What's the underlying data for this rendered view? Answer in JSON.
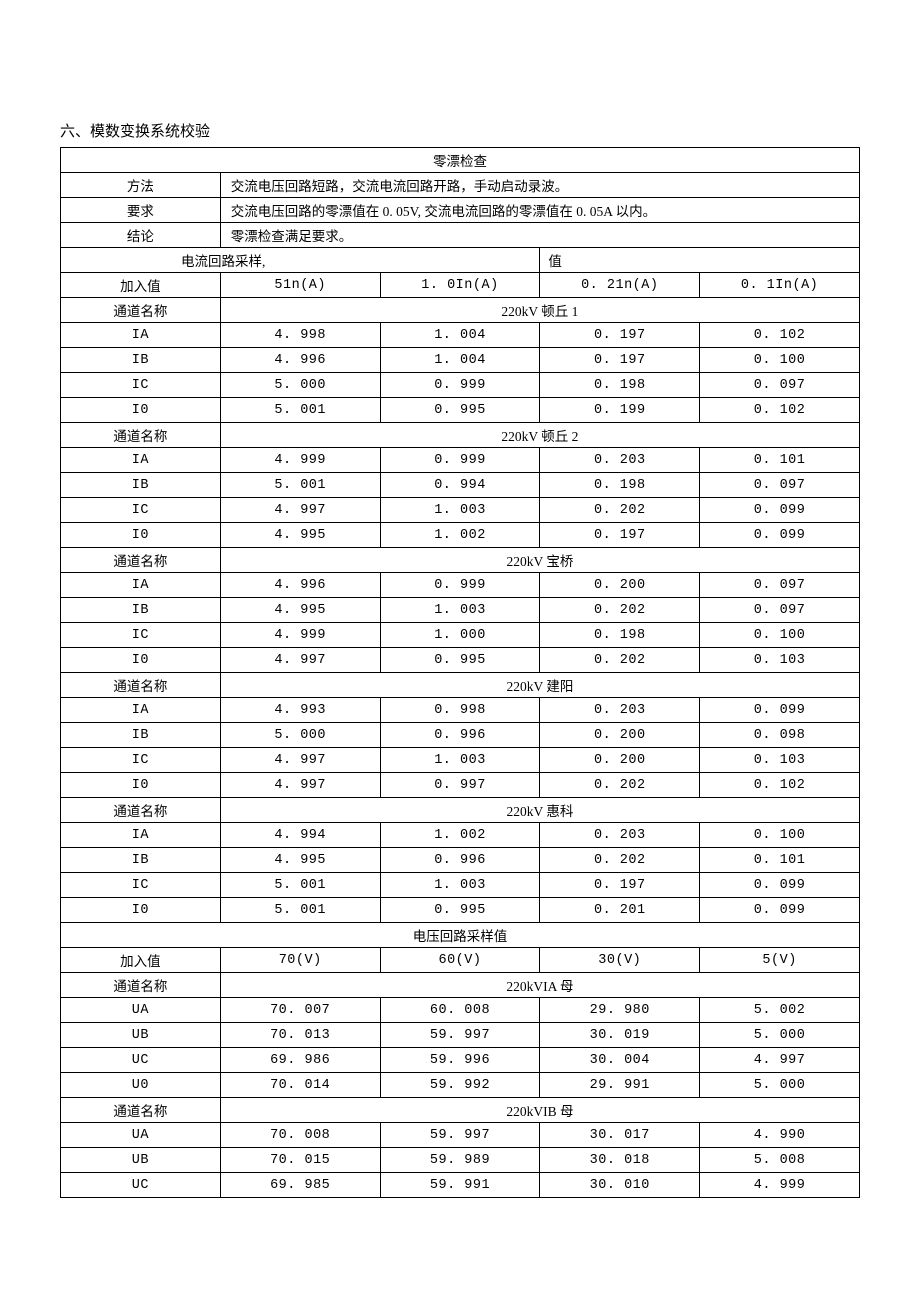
{
  "section_title": "六、模数变换系统校验",
  "zero_drift": {
    "title": "零漂检查",
    "method_label": "方法",
    "method_value": "交流电压回路短路，交流电流回路开路，手动启动录波。",
    "req_label": "要求",
    "req_value": "交流电压回路的零漂值在 0. 05V, 交流电流回路的零漂值在 0. 05A 以内。",
    "conc_label": "结论",
    "conc_value": "零漂检查满足要求。"
  },
  "current_section": {
    "header_left": "电流回路采样,",
    "header_right": "值",
    "input_label": "加入值",
    "cols": [
      "51n(A)",
      "1. 0In(A)",
      "0. 21n(A)",
      "0. 1In(A)"
    ],
    "channel_label": "通道名称",
    "groups": [
      {
        "name": "220kV 顿丘 1",
        "rows": [
          {
            "ch": "IA",
            "v": [
              "4. 998",
              "1. 004",
              "0. 197",
              "0. 102"
            ]
          },
          {
            "ch": "IB",
            "v": [
              "4. 996",
              "1. 004",
              "0. 197",
              "0. 100"
            ]
          },
          {
            "ch": "IC",
            "v": [
              "5. 000",
              "0. 999",
              "0. 198",
              "0. 097"
            ]
          },
          {
            "ch": "I0",
            "v": [
              "5. 001",
              "0. 995",
              "0. 199",
              "0. 102"
            ]
          }
        ]
      },
      {
        "name": "220kV 顿丘 2",
        "rows": [
          {
            "ch": "IA",
            "v": [
              "4. 999",
              "0. 999",
              "0. 203",
              "0. 101"
            ]
          },
          {
            "ch": "IB",
            "v": [
              "5. 001",
              "0. 994",
              "0. 198",
              "0. 097"
            ]
          },
          {
            "ch": "IC",
            "v": [
              "4. 997",
              "1. 003",
              "0. 202",
              "0. 099"
            ]
          },
          {
            "ch": "I0",
            "v": [
              "4. 995",
              "1. 002",
              "0. 197",
              "0. 099"
            ]
          }
        ]
      },
      {
        "name": "220kV 宝桥",
        "rows": [
          {
            "ch": "IA",
            "v": [
              "4. 996",
              "0. 999",
              "0. 200",
              "0. 097"
            ]
          },
          {
            "ch": "IB",
            "v": [
              "4. 995",
              "1. 003",
              "0. 202",
              "0. 097"
            ]
          },
          {
            "ch": "IC",
            "v": [
              "4. 999",
              "1. 000",
              "0. 198",
              "0. 100"
            ]
          },
          {
            "ch": "I0",
            "v": [
              "4. 997",
              "0. 995",
              "0. 202",
              "0. 103"
            ]
          }
        ]
      },
      {
        "name": "220kV 建阳",
        "rows": [
          {
            "ch": "IA",
            "v": [
              "4. 993",
              "0. 998",
              "0. 203",
              "0. 099"
            ]
          },
          {
            "ch": "IB",
            "v": [
              "5. 000",
              "0. 996",
              "0. 200",
              "0. 098"
            ]
          },
          {
            "ch": "IC",
            "v": [
              "4. 997",
              "1. 003",
              "0. 200",
              "0. 103"
            ]
          },
          {
            "ch": "I0",
            "v": [
              "4. 997",
              "0. 997",
              "0. 202",
              "0. 102"
            ]
          }
        ]
      },
      {
        "name": "220kV 惠科",
        "rows": [
          {
            "ch": "IA",
            "v": [
              "4. 994",
              "1. 002",
              "0. 203",
              "0. 100"
            ]
          },
          {
            "ch": "IB",
            "v": [
              "4. 995",
              "0. 996",
              "0. 202",
              "0. 101"
            ]
          },
          {
            "ch": "IC",
            "v": [
              "5. 001",
              "1. 003",
              "0. 197",
              "0. 099"
            ]
          },
          {
            "ch": "I0",
            "v": [
              "5. 001",
              "0. 995",
              "0. 201",
              "0. 099"
            ]
          }
        ]
      }
    ]
  },
  "voltage_section": {
    "title": "电压回路采样值",
    "input_label": "加入值",
    "cols": [
      "70(V)",
      "60(V)",
      "30(V)",
      "5(V)"
    ],
    "channel_label": "通道名称",
    "groups": [
      {
        "name": "220kVIA 母",
        "rows": [
          {
            "ch": "UA",
            "v": [
              "70. 007",
              "60. 008",
              "29. 980",
              "5. 002"
            ]
          },
          {
            "ch": "UB",
            "v": [
              "70. 013",
              "59. 997",
              "30. 019",
              "5. 000"
            ]
          },
          {
            "ch": "UC",
            "v": [
              "69. 986",
              "59. 996",
              "30. 004",
              "4. 997"
            ]
          },
          {
            "ch": "U0",
            "v": [
              "70. 014",
              "59. 992",
              "29. 991",
              "5. 000"
            ]
          }
        ]
      },
      {
        "name": "220kVIB 母",
        "rows": [
          {
            "ch": "UA",
            "v": [
              "70. 008",
              "59. 997",
              "30. 017",
              "4. 990"
            ]
          },
          {
            "ch": "UB",
            "v": [
              "70. 015",
              "59. 989",
              "30. 018",
              "5. 008"
            ]
          },
          {
            "ch": "UC",
            "v": [
              "69. 985",
              "59. 991",
              "30. 010",
              "4. 999"
            ]
          }
        ]
      }
    ]
  }
}
